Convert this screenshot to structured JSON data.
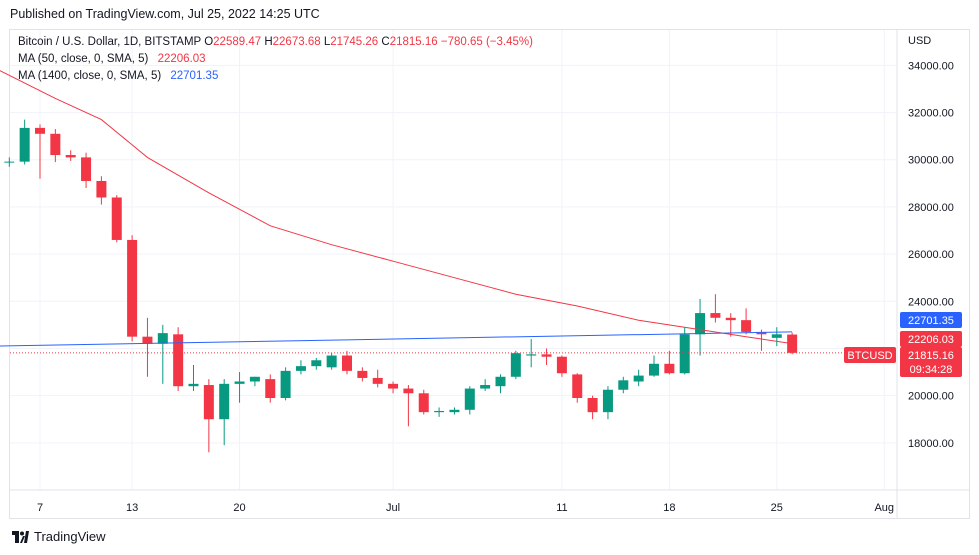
{
  "header": {
    "published": "Published on TradingView.com, Jul 25, 2022 14:25 UTC"
  },
  "legend": {
    "symbol": "Bitcoin / U.S. Dollar, 1D, BITSTAMP",
    "o_label": "O",
    "o_value": "22589.47",
    "h_label": "H",
    "h_value": "22673.68",
    "l_label": "L",
    "l_value": "21745.26",
    "c_label": "C",
    "c_value": "21815.16",
    "change": "−780.65 (−3.45%)",
    "ma50_label": "MA (50, close, 0, SMA, 5)",
    "ma50_value": "22206.03",
    "ma1400_label": "MA (1400, close, 0, SMA, 5)",
    "ma1400_value": "22701.35"
  },
  "axis": {
    "currency": "USD",
    "y_ticks": [
      "18000.00",
      "20000.00",
      "22000.00",
      "24000.00",
      "26000.00",
      "28000.00",
      "30000.00",
      "32000.00",
      "34000.00"
    ],
    "x_ticks": [
      "7",
      "13",
      "20",
      "Jul",
      "11",
      "18",
      "25",
      "Aug"
    ]
  },
  "price_labels": {
    "ma1400": "22701.35",
    "ma50": "22206.03",
    "symbol": "BTCUSD",
    "last": "21815.16",
    "countdown": "09:34:28"
  },
  "footer": {
    "brand": "TradingView"
  },
  "colors": {
    "up": "#089981",
    "down": "#f23645",
    "ma50": "#f23645",
    "ma1400": "#2962ff"
  },
  "chart_data": {
    "type": "candlestick",
    "ylim": [
      16000,
      35500
    ],
    "x_tick_days": [
      7,
      13,
      20,
      30,
      41,
      48,
      55,
      62
    ],
    "candles": [
      {
        "d": 5,
        "o": 29900,
        "h": 30100,
        "l": 29700,
        "c": 29920
      },
      {
        "d": 6,
        "o": 29920,
        "h": 31700,
        "l": 29800,
        "c": 31350
      },
      {
        "d": 7,
        "o": 31350,
        "h": 31500,
        "l": 29200,
        "c": 31100
      },
      {
        "d": 8,
        "o": 31100,
        "h": 31300,
        "l": 29900,
        "c": 30200
      },
      {
        "d": 9,
        "o": 30200,
        "h": 30400,
        "l": 29950,
        "c": 30100
      },
      {
        "d": 10,
        "o": 30100,
        "h": 30300,
        "l": 28800,
        "c": 29100
      },
      {
        "d": 11,
        "o": 29100,
        "h": 29300,
        "l": 28100,
        "c": 28400
      },
      {
        "d": 12,
        "o": 28400,
        "h": 28500,
        "l": 26500,
        "c": 26600
      },
      {
        "d": 13,
        "o": 26600,
        "h": 26800,
        "l": 22300,
        "c": 22500
      },
      {
        "d": 14,
        "o": 22500,
        "h": 23300,
        "l": 20800,
        "c": 22200
      },
      {
        "d": 15,
        "o": 22200,
        "h": 23000,
        "l": 20500,
        "c": 22650
      },
      {
        "d": 16,
        "o": 22600,
        "h": 22900,
        "l": 20200,
        "c": 20400
      },
      {
        "d": 17,
        "o": 20400,
        "h": 21300,
        "l": 20200,
        "c": 20500
      },
      {
        "d": 18,
        "o": 20450,
        "h": 20700,
        "l": 17600,
        "c": 19000
      },
      {
        "d": 19,
        "o": 19000,
        "h": 20700,
        "l": 17900,
        "c": 20500
      },
      {
        "d": 20,
        "o": 20500,
        "h": 21000,
        "l": 19700,
        "c": 20600
      },
      {
        "d": 21,
        "o": 20600,
        "h": 20800,
        "l": 20400,
        "c": 20800
      },
      {
        "d": 22,
        "o": 20700,
        "h": 20900,
        "l": 19700,
        "c": 19900
      },
      {
        "d": 23,
        "o": 19900,
        "h": 21200,
        "l": 19800,
        "c": 21050
      },
      {
        "d": 24,
        "o": 21050,
        "h": 21500,
        "l": 20900,
        "c": 21250
      },
      {
        "d": 25,
        "o": 21250,
        "h": 21600,
        "l": 21100,
        "c": 21500
      },
      {
        "d": 26,
        "o": 21200,
        "h": 21800,
        "l": 21100,
        "c": 21700
      },
      {
        "d": 27,
        "o": 21700,
        "h": 21900,
        "l": 20900,
        "c": 21050
      },
      {
        "d": 28,
        "o": 21050,
        "h": 21200,
        "l": 20600,
        "c": 20750
      },
      {
        "d": 29,
        "o": 20750,
        "h": 21100,
        "l": 20350,
        "c": 20500
      },
      {
        "d": 30,
        "o": 20500,
        "h": 20600,
        "l": 20100,
        "c": 20300
      },
      {
        "d": 31,
        "o": 20300,
        "h": 20450,
        "l": 18700,
        "c": 20100
      },
      {
        "d": 32,
        "o": 20100,
        "h": 20250,
        "l": 19200,
        "c": 19300
      },
      {
        "d": 33,
        "o": 19300,
        "h": 19500,
        "l": 19100,
        "c": 19350
      },
      {
        "d": 34,
        "o": 19300,
        "h": 19500,
        "l": 19200,
        "c": 19400
      },
      {
        "d": 35,
        "o": 19400,
        "h": 20400,
        "l": 19200,
        "c": 20300
      },
      {
        "d": 36,
        "o": 20300,
        "h": 20700,
        "l": 20200,
        "c": 20450
      },
      {
        "d": 37,
        "o": 20400,
        "h": 20900,
        "l": 20100,
        "c": 20800
      },
      {
        "d": 38,
        "o": 20800,
        "h": 21900,
        "l": 20700,
        "c": 21800
      },
      {
        "d": 39,
        "o": 21700,
        "h": 22400,
        "l": 21200,
        "c": 21750
      },
      {
        "d": 40,
        "o": 21750,
        "h": 22000,
        "l": 21300,
        "c": 21650
      },
      {
        "d": 41,
        "o": 21650,
        "h": 21700,
        "l": 20800,
        "c": 20950
      },
      {
        "d": 42,
        "o": 20900,
        "h": 20950,
        "l": 19700,
        "c": 19900
      },
      {
        "d": 43,
        "o": 19900,
        "h": 20000,
        "l": 19000,
        "c": 19300
      },
      {
        "d": 44,
        "o": 19300,
        "h": 20400,
        "l": 19000,
        "c": 20250
      },
      {
        "d": 45,
        "o": 20250,
        "h": 20800,
        "l": 20100,
        "c": 20650
      },
      {
        "d": 46,
        "o": 20600,
        "h": 21100,
        "l": 20400,
        "c": 20850
      },
      {
        "d": 47,
        "o": 20850,
        "h": 21700,
        "l": 20800,
        "c": 21350
      },
      {
        "d": 48,
        "o": 21350,
        "h": 21900,
        "l": 20900,
        "c": 20950
      },
      {
        "d": 49,
        "o": 20950,
        "h": 22900,
        "l": 20900,
        "c": 22600
      },
      {
        "d": 50,
        "o": 22600,
        "h": 24100,
        "l": 21700,
        "c": 23500
      },
      {
        "d": 51,
        "o": 23500,
        "h": 24300,
        "l": 23100,
        "c": 23300
      },
      {
        "d": 52,
        "o": 23300,
        "h": 23500,
        "l": 22500,
        "c": 23200
      },
      {
        "d": 53,
        "o": 23200,
        "h": 23700,
        "l": 22600,
        "c": 22700
      },
      {
        "d": 54,
        "o": 22700,
        "h": 22800,
        "l": 21900,
        "c": 22600
      },
      {
        "d": 55,
        "o": 22450,
        "h": 22900,
        "l": 22100,
        "c": 22600
      },
      {
        "d": 56,
        "o": 22590,
        "h": 22670,
        "l": 21750,
        "c": 21815
      }
    ],
    "ma50": [
      {
        "d": 4,
        "v": 33900
      },
      {
        "d": 8,
        "v": 32600
      },
      {
        "d": 11,
        "v": 31700
      },
      {
        "d": 14,
        "v": 30100
      },
      {
        "d": 18,
        "v": 28600
      },
      {
        "d": 22,
        "v": 27200
      },
      {
        "d": 26,
        "v": 26400
      },
      {
        "d": 30,
        "v": 25700
      },
      {
        "d": 34,
        "v": 25000
      },
      {
        "d": 38,
        "v": 24300
      },
      {
        "d": 42,
        "v": 23800
      },
      {
        "d": 46,
        "v": 23200
      },
      {
        "d": 50,
        "v": 22800
      },
      {
        "d": 53,
        "v": 22500
      },
      {
        "d": 56,
        "v": 22206
      }
    ],
    "ma1400": [
      {
        "d": 4,
        "v": 22100
      },
      {
        "d": 56,
        "v": 22701
      }
    ],
    "last_price": 21815.16
  }
}
